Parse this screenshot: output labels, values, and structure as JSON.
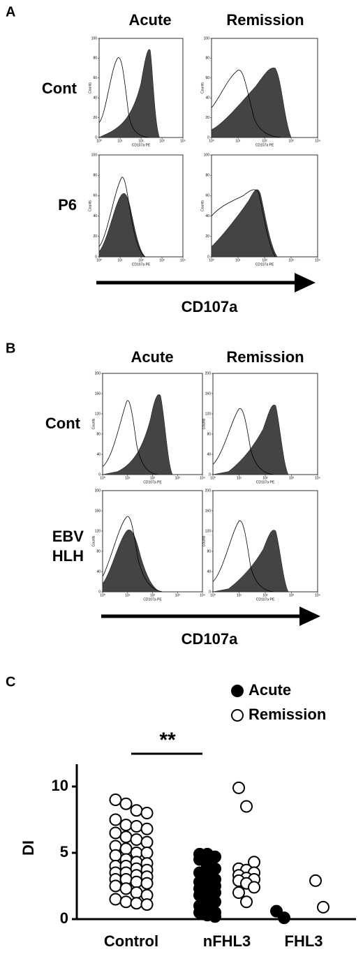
{
  "panels": [
    {
      "label": "A",
      "columns": [
        "Acute",
        "Remission"
      ],
      "rows": [
        [
          "Cont"
        ],
        [
          "P6"
        ]
      ],
      "x_axis_label": "CD107a",
      "hist": {
        "type": "histogram",
        "xlabel": "CD107a PE",
        "ylabel": "Counts",
        "xscale": "log",
        "xlim": [
          1,
          10000
        ],
        "xticks": [
          {
            "value": 1,
            "label": "10⁰"
          },
          {
            "value": 10,
            "label": "10¹"
          },
          {
            "value": 100,
            "label": "10²"
          },
          {
            "value": 1000,
            "label": "10³"
          },
          {
            "value": 10000,
            "label": "10⁴"
          }
        ],
        "ylim": [
          0,
          100
        ],
        "yticks": [
          0,
          20,
          40,
          60,
          80,
          100
        ]
      }
    },
    {
      "label": "B",
      "columns": [
        "Acute",
        "Remission"
      ],
      "rows": [
        [
          "Cont"
        ],
        [
          "EBV",
          "HLH"
        ]
      ],
      "x_axis_label": "CD107a",
      "hist": {
        "type": "histogram",
        "xlabel": "CD107a PE",
        "ylabel": "Counts",
        "xscale": "log",
        "xlim": [
          1,
          10000
        ],
        "xticks": [
          {
            "value": 1,
            "label": "10⁰"
          },
          {
            "value": 10,
            "label": "10¹"
          },
          {
            "value": 100,
            "label": "10²"
          },
          {
            "value": 1000,
            "label": "10³"
          },
          {
            "value": 10000,
            "label": "10⁴"
          }
        ],
        "ylim": [
          0,
          200
        ],
        "yticks": [
          0,
          40,
          80,
          120,
          160,
          200
        ]
      }
    }
  ],
  "chart_data": {
    "type": "scatter",
    "panel_label": "C",
    "ylabel": "DI",
    "annotation": "**",
    "categories": [
      "Control",
      "nFHL3",
      "FHL3"
    ],
    "ylim": [
      0,
      11.5
    ],
    "yticks": [
      0,
      5,
      10
    ],
    "legend": "upper right",
    "series": [
      {
        "name": "Acute",
        "color": "#000000",
        "values": [
          null,
          [
            4.9,
            4.9,
            4.7,
            4.5,
            4,
            3.8,
            3.5,
            3.2,
            3,
            2.8,
            2.6,
            2.5,
            2.3,
            2,
            2,
            1.8,
            1.5,
            1.3,
            1,
            0.8,
            0.5,
            0.5,
            0.3,
            0.2
          ],
          [
            0.6,
            0.1
          ]
        ]
      },
      {
        "name": "Remission",
        "color": "#ffffff",
        "values": [
          [
            9,
            8.7,
            8.2,
            8,
            7.5,
            7.1,
            7,
            6.8,
            6.5,
            6.2,
            6,
            5.8,
            5.5,
            5.3,
            5,
            5,
            4.8,
            4.5,
            4.3,
            4.2,
            4,
            4,
            3.8,
            3.7,
            3.5,
            3.5,
            3.3,
            3.2,
            3,
            3,
            2.8,
            2.7,
            2.5,
            2.3,
            2,
            1.8,
            1.5,
            1.3,
            1.2,
            1.1
          ],
          [
            9.9,
            8.5,
            4.3,
            3.8,
            3.7,
            3.5,
            3.3,
            3.1,
            3,
            2.9,
            2.7,
            2.4,
            2,
            1.3
          ],
          [
            2.9,
            0.9
          ]
        ]
      }
    ]
  }
}
